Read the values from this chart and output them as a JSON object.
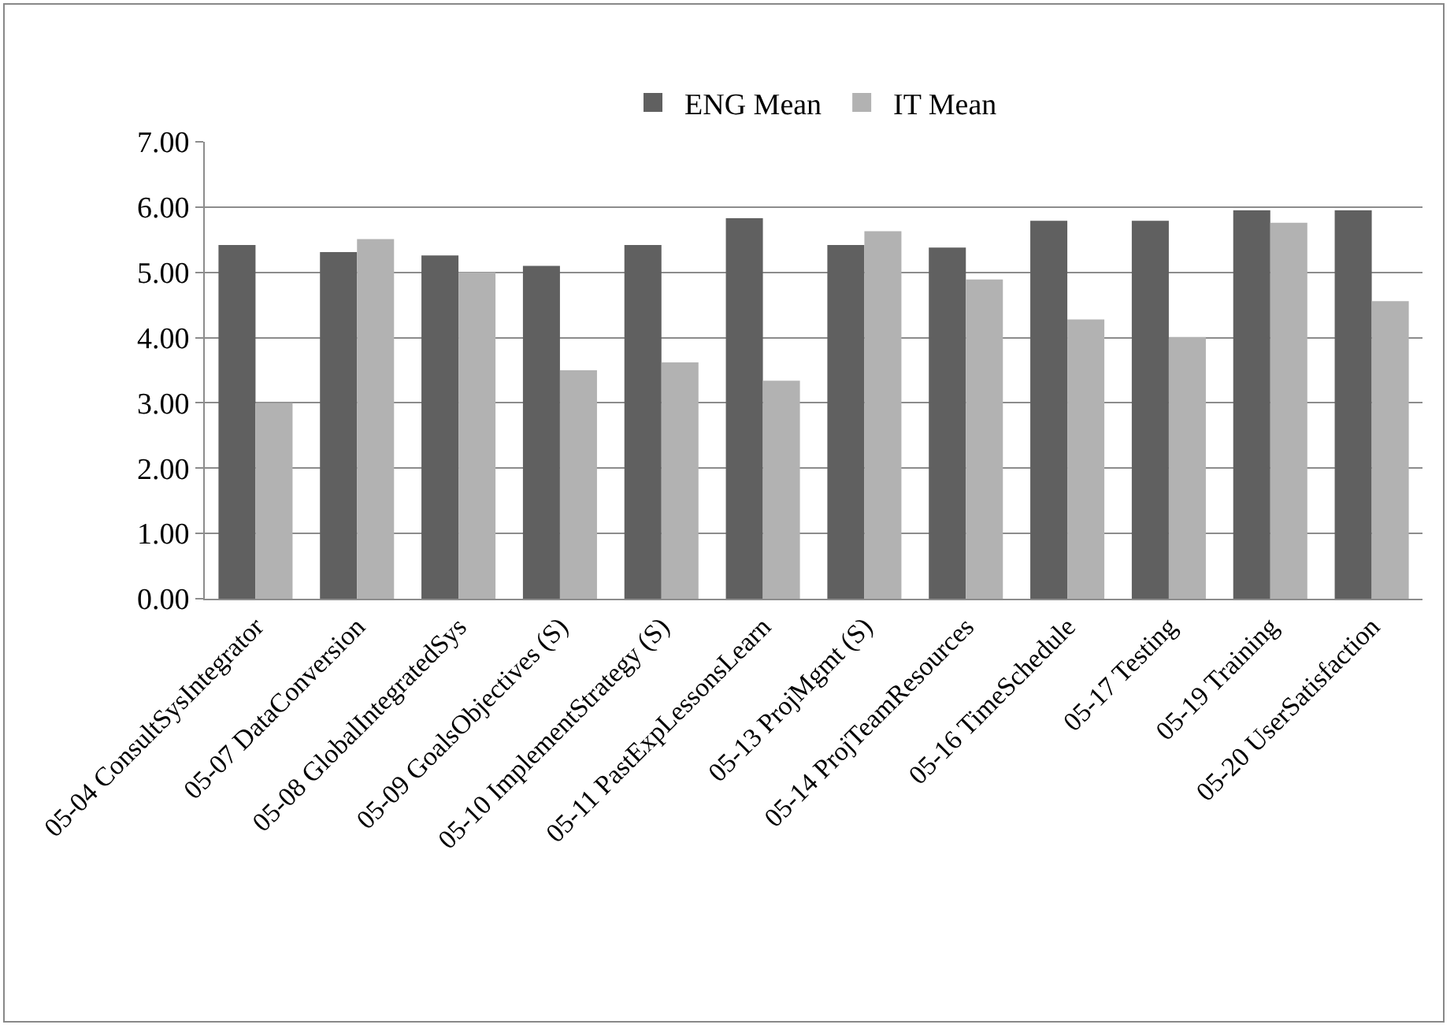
{
  "chart_data": {
    "type": "bar",
    "categories": [
      "05-04 ConsultSysIntegrator",
      "05-07 DataConversion",
      "05-08 GlobalIntegratedSys",
      "05-09 GoalsObjectives (S)",
      "05-10 ImplementStrategy (S)",
      "05-11 PastExpLessonsLearn",
      "05-13 ProjMgmt (S)",
      "05-14 ProjTeamResources",
      "05-16 TimeSchedule",
      "05-17 Testing",
      "05-19 Training",
      "05-20 UserSatisfaction"
    ],
    "series": [
      {
        "name": "ENG Mean",
        "color": "#606060",
        "values": [
          5.42,
          5.31,
          5.26,
          5.1,
          5.42,
          5.83,
          5.42,
          5.38,
          5.79,
          5.79,
          5.95,
          5.95
        ]
      },
      {
        "name": "IT Mean",
        "color": "#b2b2b2",
        "values": [
          3.0,
          5.51,
          5.0,
          3.5,
          3.62,
          3.34,
          5.63,
          4.89,
          4.28,
          4.01,
          5.76,
          4.56
        ]
      }
    ],
    "ylim": [
      0,
      7
    ],
    "yticks": [
      {
        "value": 0,
        "label": "0.00"
      },
      {
        "value": 1,
        "label": "1.00"
      },
      {
        "value": 2,
        "label": "2.00"
      },
      {
        "value": 3,
        "label": "3.00"
      },
      {
        "value": 4,
        "label": "4.00"
      },
      {
        "value": 5,
        "label": "5.00"
      },
      {
        "value": 6,
        "label": "6.00"
      },
      {
        "value": 7,
        "label": "7.00"
      }
    ],
    "grid": "y",
    "legend": "top"
  }
}
